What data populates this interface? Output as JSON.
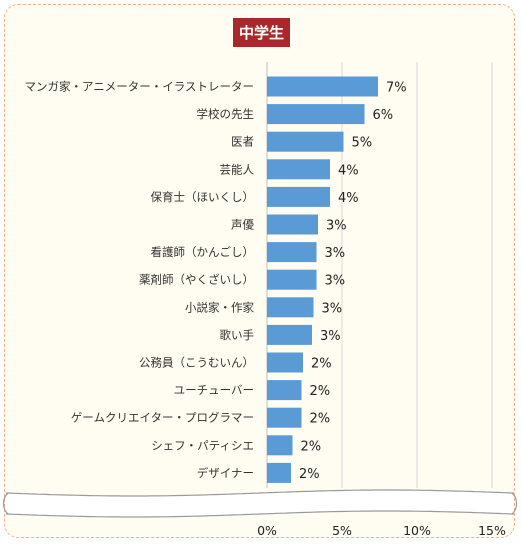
{
  "chart_data": {
    "type": "bar",
    "orientation": "horizontal",
    "title": "中学生",
    "categories": [
      "マンガ家・アニメーター・イラストレーター",
      "学校の先生",
      "医者",
      "芸能人",
      "保育士（ほいくし）",
      "声優",
      "看護師（かんごし）",
      "薬剤師（やくざいし）",
      "小説家・作家",
      "歌い手",
      "公務員（こうむいん）",
      "ユーチューバー",
      "ゲームクリエイター・プログラマー",
      "シェフ・パティシエ",
      "デザイナー"
    ],
    "values": [
      7.4,
      6.5,
      5.1,
      4.2,
      4.2,
      3.4,
      3.3,
      3.3,
      3.1,
      3.0,
      2.4,
      2.3,
      2.3,
      1.7,
      1.6
    ],
    "value_labels": [
      "7%",
      "6%",
      "5%",
      "4%",
      "4%",
      "3%",
      "3%",
      "3%",
      "3%",
      "3%",
      "2%",
      "2%",
      "2%",
      "2%",
      "2%"
    ],
    "xlim": [
      0,
      15
    ],
    "x_ticks": [
      "0%",
      "5%",
      "10%",
      "15%"
    ],
    "grid": true,
    "bar_color": "#5b9bd5",
    "title_color": "#a8282c"
  }
}
